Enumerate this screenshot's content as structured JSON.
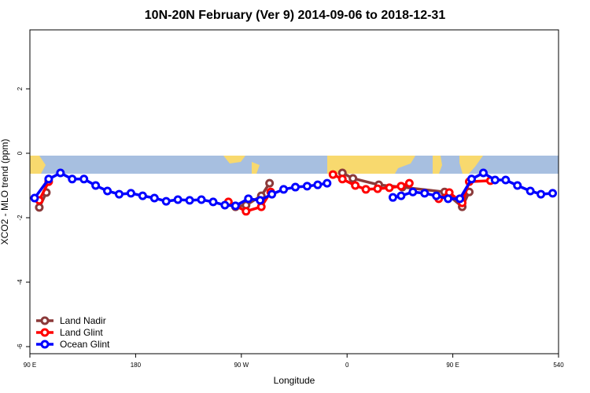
{
  "chart_data": {
    "type": "line",
    "title": "10N-20N February (Ver 9)   2014-09-06 to 2018-12-31",
    "x_label": "Longitude",
    "y_label": "XCO2 - MLO trend (ppm)",
    "xlim": [
      90,
      540
    ],
    "ylim": [
      -6.22,
      3.83
    ],
    "xticks": [
      {
        "value": 90,
        "label": "90 E"
      },
      180,
      {
        "value": 270,
        "label": "90 W"
      },
      {
        "value": 360,
        "label": "0"
      },
      {
        "value": 450,
        "label": "90 E"
      },
      540
    ],
    "yticks": [
      -6,
      -4,
      -2,
      0,
      2
    ],
    "legend": "bottom-left",
    "series": [
      {
        "name": "Land Nadir",
        "color": "#8b3a3a",
        "x": [
          98,
          104,
          180,
          265,
          274,
          287,
          294,
          330,
          356,
          365,
          387,
          407,
          443,
          458,
          464
        ],
        "values": [
          -1.68,
          -1.22,
          null,
          -1.66,
          -1.61,
          -1.32,
          -0.93,
          null,
          -0.61,
          -0.78,
          -0.98,
          -1.05,
          -1.2,
          -1.66,
          -1.2
        ]
      },
      {
        "name": "Land Glint",
        "color": "#ff0000",
        "x": [
          98,
          106,
          180,
          259,
          274,
          287,
          295,
          320,
          348,
          356,
          367,
          376,
          386,
          396,
          406,
          413,
          425,
          438,
          447,
          458,
          464,
          482
        ],
        "values": [
          -1.46,
          -0.88,
          null,
          -1.51,
          -1.8,
          -1.66,
          -1.2,
          null,
          -0.66,
          -0.8,
          -1.0,
          -1.12,
          -1.1,
          -1.07,
          -1.02,
          -0.93,
          null,
          -1.41,
          -1.22,
          -1.54,
          -0.88,
          -0.85
        ]
      },
      {
        "name": "Ocean Glint",
        "color": "#0000ff",
        "x": [
          94,
          106,
          116,
          126,
          136,
          146,
          156,
          166,
          176,
          186,
          196,
          206,
          216,
          226,
          236,
          246,
          256,
          265,
          276,
          286,
          296,
          306,
          316,
          326,
          335,
          343,
          370,
          399,
          406,
          416,
          426,
          436,
          446,
          456,
          466,
          476,
          486,
          495,
          505,
          516,
          525,
          535
        ],
        "values": [
          -1.39,
          -0.8,
          -0.61,
          -0.8,
          -0.8,
          -1.0,
          -1.17,
          -1.27,
          -1.24,
          -1.32,
          -1.39,
          -1.49,
          -1.44,
          -1.46,
          -1.44,
          -1.51,
          -1.61,
          -1.63,
          -1.41,
          -1.46,
          -1.27,
          -1.12,
          -1.05,
          -1.02,
          -0.98,
          -0.93,
          null,
          -1.37,
          -1.32,
          -1.2,
          -1.24,
          -1.32,
          -1.41,
          -1.41,
          -0.8,
          -0.61,
          -0.83,
          -0.83,
          -1.0,
          -1.17,
          -1.27,
          -1.24
        ]
      }
    ]
  }
}
